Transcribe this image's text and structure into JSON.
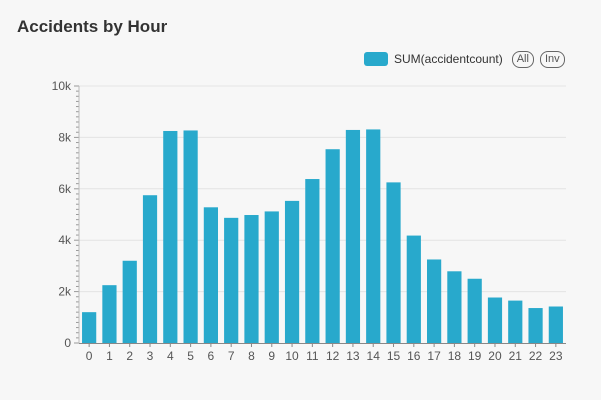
{
  "chart_data": {
    "type": "bar",
    "title": "Accidents by Hour",
    "categories": [
      "0",
      "1",
      "2",
      "3",
      "4",
      "5",
      "6",
      "7",
      "8",
      "9",
      "10",
      "11",
      "12",
      "13",
      "14",
      "15",
      "16",
      "17",
      "18",
      "19",
      "20",
      "21",
      "22",
      "23"
    ],
    "series": [
      {
        "name": "SUM(accidentcount)",
        "values": [
          1200,
          2250,
          3200,
          5750,
          8250,
          8270,
          5280,
          4870,
          4980,
          5120,
          5530,
          6380,
          7540,
          8290,
          8310,
          6250,
          4180,
          3250,
          2790,
          2500,
          1770,
          1650,
          1360,
          1420
        ]
      }
    ],
    "y_ticks": [
      "0",
      "2k",
      "4k",
      "6k",
      "8k",
      "10k"
    ],
    "ylim": [
      0,
      10000
    ],
    "grid": true,
    "legend_position": "top-right",
    "color": "#28a9cc"
  },
  "legend": {
    "all_label": "All",
    "inv_label": "Inv"
  }
}
